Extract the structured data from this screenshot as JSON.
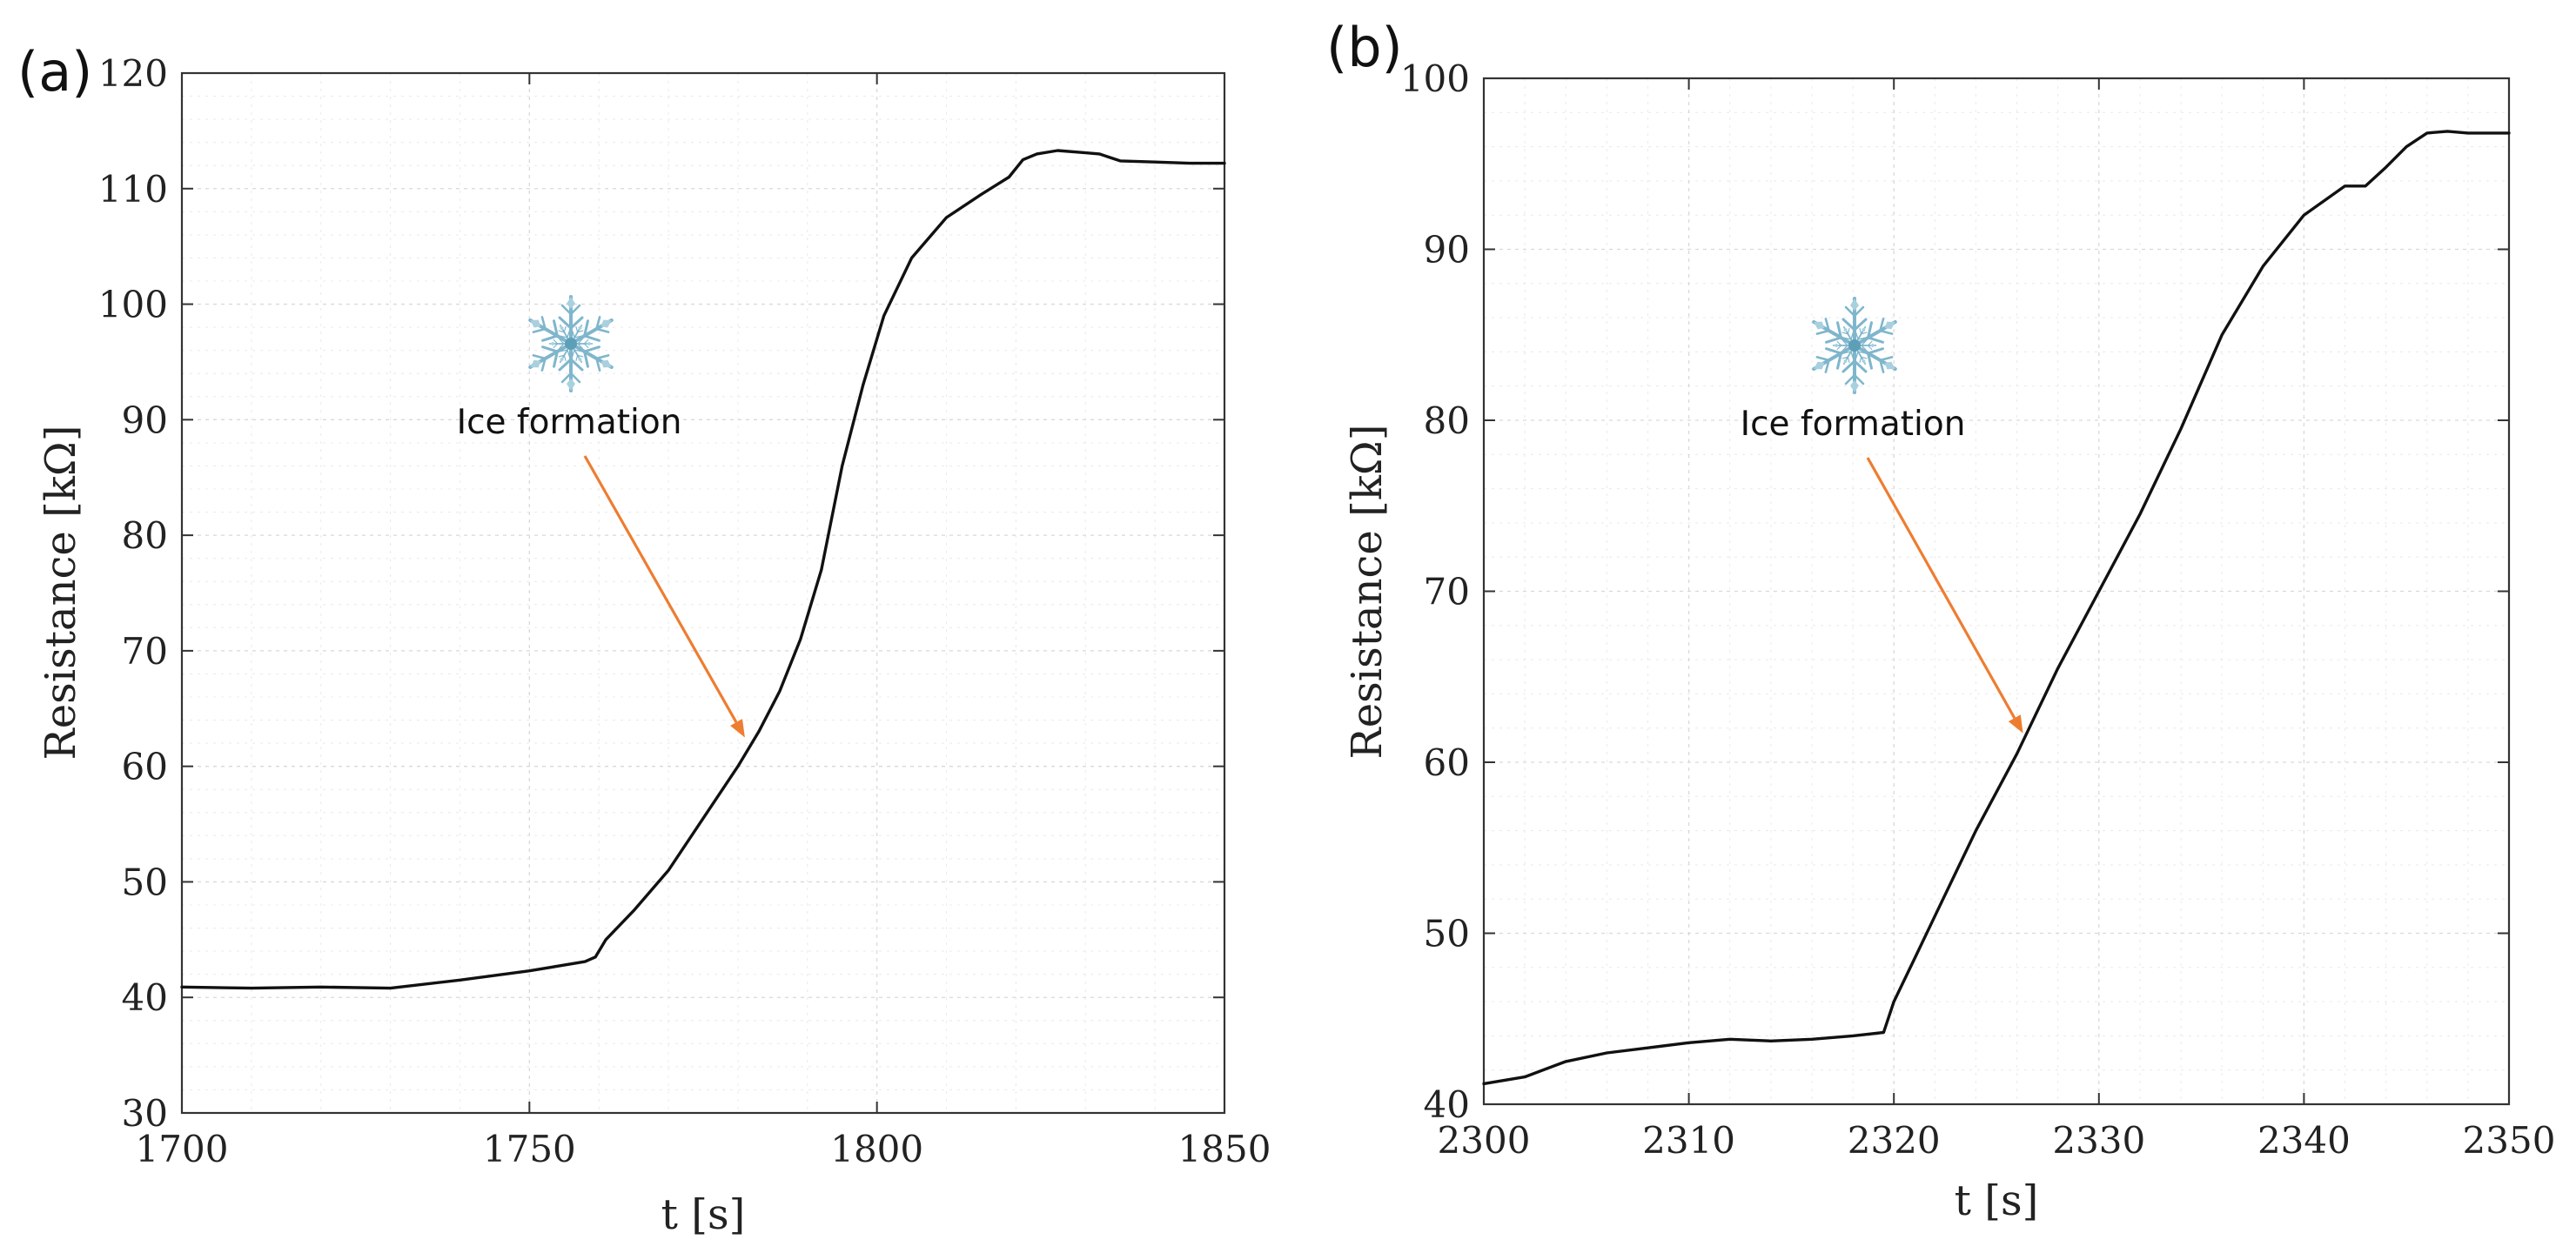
{
  "colors": {
    "line": "#111111",
    "arrow": "#ed7d31",
    "snowflake": "#7fb6cc",
    "grid": "#d9d9d9"
  },
  "chart_data": [
    {
      "type": "line",
      "panel_label": "(a)",
      "xlabel": "t [s]",
      "ylabel": "Resistance [kΩ]",
      "xlim": [
        1700,
        1850
      ],
      "ylim": [
        30,
        120
      ],
      "xticks": [
        1700,
        1750,
        1800,
        1850
      ],
      "yticks": [
        30,
        40,
        50,
        60,
        70,
        80,
        90,
        100,
        110,
        120
      ],
      "grid": true,
      "annotation": {
        "text": "Ice formation",
        "icon": "snowflake-icon",
        "arrow_to": [
          1781,
          62.5
        ]
      },
      "series": [
        {
          "name": "Resistance",
          "x": [
            1700,
            1710,
            1720,
            1730,
            1740,
            1750,
            1758,
            1759.5,
            1761,
            1765,
            1770,
            1775,
            1780,
            1783,
            1786,
            1789,
            1792,
            1795,
            1798,
            1801,
            1805,
            1810,
            1815,
            1819,
            1821,
            1823,
            1826,
            1830,
            1832,
            1835,
            1840,
            1845,
            1850
          ],
          "y": [
            40.9,
            40.8,
            40.9,
            40.8,
            41.5,
            42.3,
            43.1,
            43.5,
            45.0,
            47.5,
            51.0,
            55.5,
            60.0,
            63.0,
            66.5,
            71.0,
            77.0,
            86.0,
            93.0,
            99.0,
            104.0,
            107.5,
            109.5,
            111.0,
            112.5,
            113.0,
            113.3,
            113.1,
            113.0,
            112.4,
            112.3,
            112.2,
            112.2
          ]
        }
      ]
    },
    {
      "type": "line",
      "panel_label": "(b)",
      "xlabel": "t [s]",
      "ylabel": "Resistance [kΩ]",
      "xlim": [
        2300,
        2350
      ],
      "ylim": [
        40,
        100
      ],
      "xticks": [
        2300,
        2310,
        2320,
        2330,
        2340,
        2350
      ],
      "yticks": [
        40,
        50,
        60,
        70,
        80,
        90,
        100
      ],
      "grid": true,
      "annotation": {
        "text": "Ice formation",
        "icon": "snowflake-icon",
        "arrow_to": [
          2326.3,
          61.7
        ]
      },
      "series": [
        {
          "name": "Resistance",
          "x": [
            2300,
            2302,
            2304,
            2306,
            2308,
            2310,
            2312,
            2314,
            2316,
            2318,
            2319.5,
            2320,
            2321,
            2322,
            2324,
            2326,
            2328,
            2330,
            2332,
            2334,
            2336,
            2338,
            2340,
            2342,
            2343,
            2344,
            2345,
            2346,
            2347,
            2348,
            2350
          ],
          "y": [
            41.2,
            41.6,
            42.5,
            43.0,
            43.3,
            43.6,
            43.8,
            43.7,
            43.8,
            44.0,
            44.2,
            46.0,
            48.5,
            51.0,
            56.0,
            60.5,
            65.5,
            70.0,
            74.5,
            79.5,
            85.0,
            89.0,
            92.0,
            93.7,
            93.7,
            94.8,
            96.0,
            96.8,
            96.9,
            96.8,
            96.8
          ]
        }
      ]
    }
  ]
}
